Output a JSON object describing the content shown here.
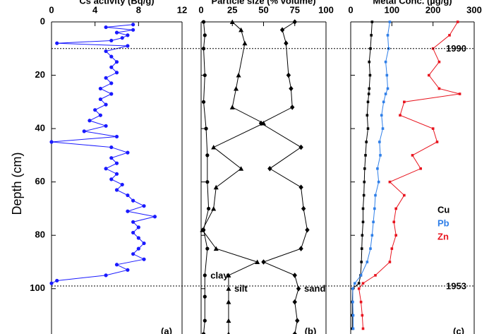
{
  "chart_data": [
    {
      "type": "line",
      "title": "Cs activity (Bq/g)",
      "y_label": "Depth (cm)",
      "panel_label": "(a)",
      "xlim": [
        0,
        12
      ],
      "xticks": [
        0,
        4,
        8,
        12
      ],
      "ylim": [
        0,
        117
      ],
      "yticks": [
        0,
        20,
        40,
        60,
        80,
        100
      ],
      "series": [
        {
          "color": "#1a1aff",
          "marker": "circle",
          "depth": [
            1,
            2,
            3,
            4,
            5,
            6,
            7,
            8,
            9,
            11,
            13,
            15,
            17,
            19,
            21,
            23,
            25,
            27,
            29,
            31,
            33,
            35,
            37,
            39,
            41,
            43,
            45,
            47,
            49,
            51,
            53,
            55,
            57,
            59,
            61,
            63,
            65,
            67,
            69,
            71,
            73,
            75,
            77,
            79,
            81,
            83,
            85,
            87,
            89,
            91,
            93,
            95,
            97,
            98
          ],
          "values": [
            7.5,
            5,
            7.5,
            6,
            7,
            6.5,
            5.5,
            0.5,
            7,
            5,
            5.5,
            6,
            5.5,
            6,
            5,
            5.5,
            4.5,
            5.5,
            4.5,
            5,
            4,
            4.5,
            3.5,
            5,
            3,
            6,
            0,
            5.5,
            7,
            5.5,
            6,
            5,
            6,
            5.5,
            6.5,
            6,
            7,
            7.5,
            8.5,
            7,
            9.5,
            7.5,
            8,
            7.5,
            8,
            8.5,
            8,
            7.5,
            8.5,
            6,
            7,
            5,
            0.5,
            0
          ]
        }
      ]
    },
    {
      "type": "line",
      "title": "Particle size (% volume)",
      "panel_label": "(b)",
      "xlim": [
        0,
        100
      ],
      "xticks": [
        0,
        25,
        50,
        75,
        100
      ],
      "series": [
        {
          "name": "clay",
          "color": "#000000",
          "marker": "circle",
          "depth": [
            0,
            5,
            10,
            20,
            30,
            40,
            50,
            60,
            70,
            78,
            85,
            95,
            103,
            112,
            117
          ],
          "values": [
            2,
            3,
            2,
            3,
            2,
            4,
            5,
            5,
            6,
            2,
            5,
            3,
            3,
            3,
            2
          ]
        },
        {
          "name": "silt",
          "color": "#000000",
          "marker": "triangle",
          "depth": [
            0,
            3,
            8,
            20,
            25,
            32,
            38,
            47,
            55,
            62,
            70,
            78,
            85,
            90,
            95,
            100,
            105,
            112,
            117
          ],
          "values": [
            25,
            32,
            35,
            30,
            28,
            25,
            50,
            10,
            32,
            12,
            10,
            1,
            12,
            45,
            22,
            22,
            22,
            22,
            22
          ]
        },
        {
          "name": "sand",
          "color": "#000000",
          "marker": "diamond",
          "depth": [
            0,
            3,
            8,
            20,
            25,
            32,
            38,
            47,
            55,
            62,
            70,
            78,
            85,
            90,
            95,
            100,
            105,
            112,
            117
          ],
          "values": [
            75,
            65,
            68,
            70,
            72,
            73,
            48,
            80,
            55,
            80,
            82,
            85,
            80,
            50,
            75,
            78,
            75,
            77,
            75
          ]
        }
      ]
    },
    {
      "type": "line",
      "title": "Metal Conc. (µg/g)",
      "panel_label": "(c)",
      "xlim": [
        0,
        300
      ],
      "xticks": [
        0,
        100,
        200,
        300
      ],
      "markers": [
        {
          "depth": 10,
          "label": "1990"
        },
        {
          "depth": 99,
          "label": "1953"
        }
      ],
      "series": [
        {
          "name": "Cu",
          "color": "#000000",
          "marker": "square",
          "depth": [
            0,
            5,
            10,
            15,
            20,
            25,
            27,
            30,
            35,
            40,
            45,
            50,
            55,
            60,
            65,
            70,
            75,
            80,
            85,
            90,
            95,
            98,
            100,
            105,
            110,
            115
          ],
          "values": [
            52,
            50,
            48,
            45,
            47,
            45,
            44,
            42,
            40,
            42,
            38,
            36,
            34,
            33,
            32,
            30,
            30,
            28,
            27,
            26,
            24,
            20,
            5,
            4,
            4,
            4
          ]
        },
        {
          "name": "Pb",
          "color": "#2f7fe8",
          "marker": "square",
          "depth": [
            0,
            5,
            10,
            15,
            20,
            25,
            27,
            30,
            35,
            40,
            45,
            50,
            55,
            60,
            65,
            70,
            75,
            80,
            85,
            90,
            95,
            98,
            100,
            105,
            110,
            115
          ],
          "values": [
            95,
            90,
            92,
            85,
            88,
            90,
            85,
            80,
            75,
            78,
            70,
            72,
            65,
            68,
            60,
            58,
            55,
            52,
            48,
            40,
            25,
            10,
            5,
            5,
            6,
            6
          ]
        },
        {
          "name": "Zn",
          "color": "#e8141e",
          "marker": "square",
          "depth": [
            0,
            5,
            10,
            15,
            20,
            25,
            27,
            30,
            35,
            40,
            45,
            50,
            55,
            60,
            65,
            70,
            75,
            80,
            85,
            90,
            95,
            98,
            100,
            105,
            110,
            115
          ],
          "values": [
            260,
            240,
            200,
            215,
            190,
            215,
            265,
            130,
            120,
            200,
            210,
            150,
            170,
            95,
            130,
            110,
            105,
            110,
            100,
            95,
            60,
            30,
            20,
            25,
            28,
            30
          ]
        }
      ]
    }
  ]
}
